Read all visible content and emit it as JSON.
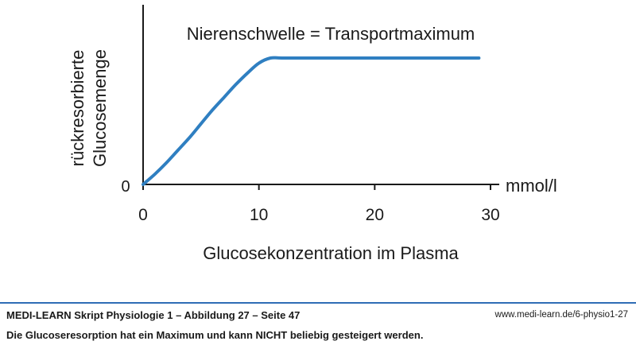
{
  "chart_data": {
    "type": "line",
    "title": "Nierenschwelle = Transportmaximum",
    "xlabel": "Glucosekonzentration im Plasma",
    "xunit": "mmol/l",
    "ylabel_line1": "rückresorbierte",
    "ylabel_line2": "Glucosemenge",
    "xlim": [
      0,
      30
    ],
    "ylim": [
      0,
      1
    ],
    "x_ticks": [
      "0",
      "10",
      "20",
      "30"
    ],
    "y_tick_label": "0",
    "series": [
      {
        "color": "#2f7fc1",
        "points": [
          [
            0,
            0
          ],
          [
            1,
            0.08
          ],
          [
            2,
            0.17
          ],
          [
            3,
            0.27
          ],
          [
            4,
            0.37
          ],
          [
            5,
            0.48
          ],
          [
            6,
            0.59
          ],
          [
            7,
            0.69
          ],
          [
            8,
            0.79
          ],
          [
            9,
            0.88
          ],
          [
            10,
            0.96
          ],
          [
            11,
            1.0
          ],
          [
            12,
            1.0
          ],
          [
            15,
            1.0
          ],
          [
            20,
            1.0
          ],
          [
            25,
            1.0
          ],
          [
            29,
            1.0
          ]
        ]
      }
    ]
  },
  "footer": {
    "caption": "MEDI-LEARN Skript Physiologie 1 – Abbildung 27 – Seite 47",
    "url": "www.medi-learn.de/6-physio1-27",
    "subcaption": "Die Glucoseresorption hat ein Maximum und kann NICHT beliebig gesteigert werden."
  }
}
